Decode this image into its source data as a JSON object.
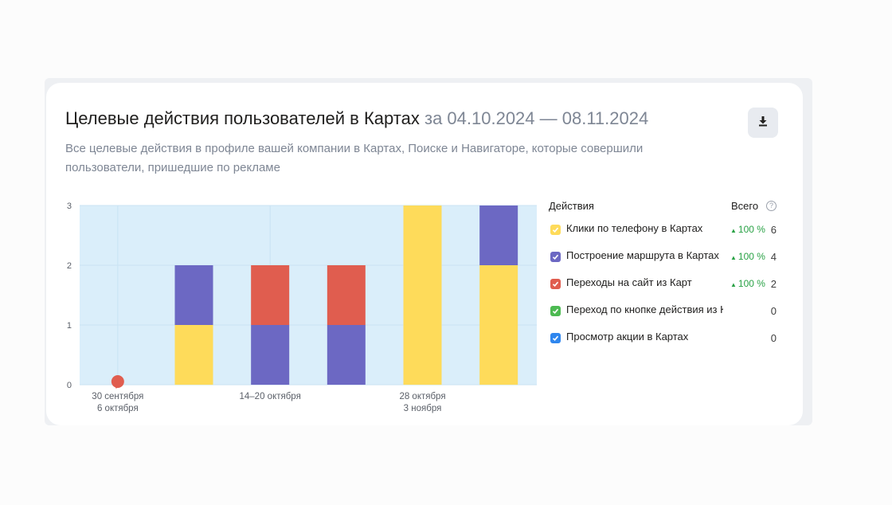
{
  "header": {
    "title": "Целевые действия пользователей в Картах",
    "period": "за 04.10.2024 — 08.11.2024",
    "subtitle": "Все целевые действия в профиле вашей компании в Картах, Поиске и Навигаторе, которые совершили пользователи, пришедшие по рекламе",
    "download_icon": "download-icon"
  },
  "legend": {
    "col_actions": "Действия",
    "col_total": "Всего",
    "help_icon": "?",
    "items": [
      {
        "label": "Клики по телефону в Картах",
        "color": "#fedb5a",
        "delta": "100 %",
        "total": "6"
      },
      {
        "label": "Построение маршрута в Картах",
        "color": "#6c68c3",
        "delta": "100 %",
        "total": "4"
      },
      {
        "label": "Переходы на сайт из Карт",
        "color": "#e05d4f",
        "delta": "100 %",
        "total": "2"
      },
      {
        "label": "Переход по кнопке действия из Карт",
        "color": "#4dba52",
        "delta": "",
        "total": "0"
      },
      {
        "label": "Просмотр акции в Картах",
        "color": "#2f86ee",
        "delta": "",
        "total": "0"
      }
    ]
  },
  "chart_data": {
    "type": "bar",
    "stacked": true,
    "ylim": [
      0,
      3
    ],
    "yticks": [
      "0",
      "1",
      "2",
      "3"
    ],
    "xtick_labels": [
      {
        "index": 0,
        "lines": [
          "30 сентября",
          "6 октября"
        ]
      },
      {
        "index": 2,
        "lines": [
          "14–20 октября"
        ]
      },
      {
        "index": 4,
        "lines": [
          "28 октября",
          "3 ноября"
        ]
      }
    ],
    "categories": [
      "30 сентября – 6 октября",
      "",
      "14–20 октября",
      "",
      "28 октября – 3 ноября",
      ""
    ],
    "series": [
      {
        "name": "Клики по телефону в Картах",
        "color": "#fedb5a",
        "values": [
          0,
          1,
          0,
          0,
          3,
          2
        ]
      },
      {
        "name": "Построение маршрута в Картах",
        "color": "#6c68c3",
        "values": [
          0,
          1,
          1,
          1,
          0,
          1
        ]
      },
      {
        "name": "Переходы на сайт из Карт",
        "color": "#e05d4f",
        "values": [
          0,
          0,
          1,
          1,
          0,
          0
        ]
      },
      {
        "name": "Переход по кнопке действия из Карт",
        "color": "#4dba52",
        "values": [
          0,
          0,
          0,
          0,
          0,
          0
        ]
      },
      {
        "name": "Просмотр акции в Картах",
        "color": "#2f86ee",
        "values": [
          0,
          0,
          0,
          0,
          0,
          0
        ]
      }
    ],
    "marker": {
      "index": 0,
      "color": "#e05d4f"
    },
    "plot_background": "#daeefa",
    "grid": true
  }
}
